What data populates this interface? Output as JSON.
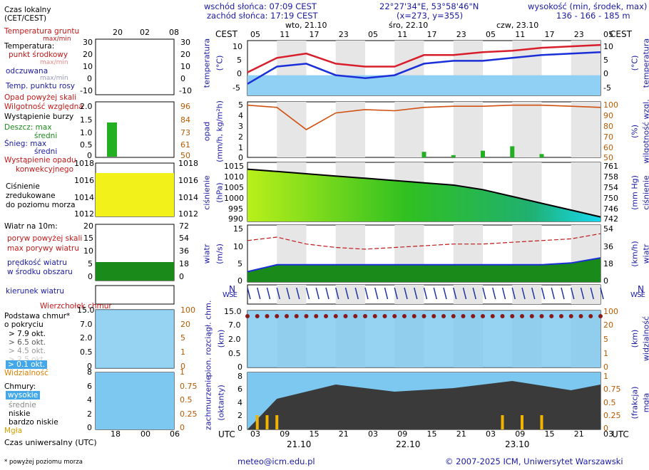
{
  "header": {
    "sunrise": "wschód słońca: 07:09 CEST",
    "sunset": "zachód słońca: 17:19 CEST",
    "coords": "22°27'34\"E, 53°58'46\"N",
    "grid": "(x=273,  y=355)",
    "altitude_label": "wysokość (min, środek, max)",
    "altitude_values": "136 - 166 - 185 m"
  },
  "left_panel": {
    "local_time": "Czas lokalny",
    "local_time_zone": "(CET/CEST)",
    "local_hours": [
      "20",
      "02",
      "08"
    ],
    "temp_ground": "Temperatura gruntu",
    "temp_ground_sub": "max/min",
    "temperature": "Temperatura:",
    "mid_point": "punkt środkowy",
    "mid_point_sub": "max/min",
    "felt": "odczuwana",
    "felt_sub": "max/min",
    "dew_point": "Temp. punktu rosy",
    "temp_ticks": [
      "30",
      "20",
      "10",
      "0",
      "-10"
    ],
    "precip_over": "Opad powyżej skali",
    "humidity": "Wilgotność względna",
    "storm": "Wystąpienie burzy",
    "rain_max": "Deszcz: max",
    "rain_mean": "średni",
    "snow_max": "Śnieg:    max",
    "snow_mean": "średni",
    "freezing": "Wystąpienie opadu",
    "freezing2": "konwekcyjnego",
    "precip_ticks": [
      "2.0",
      "1.5",
      "1.0",
      "0.5",
      "0"
    ],
    "humidity_ticks": [
      "96",
      "84",
      "73",
      "61",
      "50"
    ],
    "pressure_l1": "Ciśnienie",
    "pressure_l2": "zredukowane",
    "pressure_l3": "do poziomu morza",
    "pressure_ticks": [
      "1018",
      "1016",
      "1014",
      "1012"
    ],
    "wind_title": "Wiatr na 10m:",
    "gust_over": "poryw powyżej skali",
    "gust_max": "max porywy wiatru",
    "wind_speed": "prędkość wiatru",
    "wind_area": "w środku obszaru",
    "wind_ticks": [
      "20",
      "15",
      "10",
      "5",
      "0"
    ],
    "wind_kmh_ticks": [
      "72",
      "54",
      "36",
      "18",
      "0"
    ],
    "wind_dir": "kierunek wiatru",
    "cloud_top": "Wierzchołek chmur",
    "cloud_base": "Podstawa chmur*",
    "cloud_cover": "o pokryciu",
    "okt": [
      "> 7.9 okt.",
      "> 6.5 okt.",
      "> 4.5 okt.",
      "> 2.5 okt.",
      "> 0.1 okt."
    ],
    "cloud_ticks": [
      "15.0",
      "7.0",
      "2.0",
      "0.5",
      "0"
    ],
    "vis_ticks": [
      "100",
      "20",
      "5",
      "1",
      "0"
    ],
    "visibility": "Widzialność",
    "clouds": "Chmury:",
    "cl_high": "wysokie",
    "cl_mid": "średnie",
    "cl_low": "niskie",
    "cl_vlow": "bardzo niskie",
    "fog": "Mgła",
    "cl_ticks": [
      "8",
      "6",
      "4",
      "2",
      "0"
    ],
    "fog_ticks": [
      "1",
      "0.75",
      "0.5",
      "0.25",
      "0"
    ],
    "utc_hours": [
      "18",
      "00",
      "06"
    ],
    "utc_label": "Czas uniwersalny (UTC)",
    "footnote": "* powyżej poziomu morza"
  },
  "main": {
    "cest": "CEST",
    "utc": "UTC",
    "days_top": [
      "wto, 21.10",
      "śro, 22.10",
      "czw, 23.10"
    ],
    "hours_top": [
      "05",
      "11",
      "17",
      "23",
      "05",
      "11",
      "17",
      "23",
      "05",
      "11",
      "17",
      "23",
      "05"
    ],
    "hours_bottom": [
      "03",
      "09",
      "15",
      "21",
      "03",
      "09",
      "15",
      "21",
      "03",
      "09",
      "15",
      "21",
      "03"
    ],
    "days_bottom": [
      "21.10",
      "22.10",
      "23.10"
    ],
    "temp_ticks": [
      "10",
      "5",
      "0",
      "-5"
    ],
    "temp_label_l": "temperatura",
    "temp_label_l2": "(°C)",
    "temp_label_r": "(°C)",
    "temp_label_r2": "temperatura",
    "precip_ticks": [
      "5",
      "4",
      "3",
      "2",
      "1",
      "0"
    ],
    "hum_ticks": [
      "100",
      "90",
      "80",
      "70",
      "60",
      "50"
    ],
    "precip_label_l": "opad",
    "precip_label_l2": "(mm/h, kg/m²h)",
    "precip_label_r": "(%)",
    "precip_label_r2": "wilgotność wzgl.",
    "press_ticks": [
      "1015",
      "1010",
      "1005",
      "1000",
      "995",
      "990"
    ],
    "press_mm_ticks": [
      "761",
      "758",
      "754",
      "750",
      "746",
      "742"
    ],
    "press_label_l": "ciśnienie",
    "press_label_l2": "(hPa)",
    "press_label_r": "(mm Hg)",
    "press_label_r2": "ciśnienie",
    "wind_ticks": [
      "15",
      "10",
      "5",
      "0"
    ],
    "wind_kmh_ticks": [
      "54",
      "36",
      "18",
      "0"
    ],
    "wind_label_l": "wiatr",
    "wind_label_l2": "(m/s)",
    "wind_label_r": "(km/h)",
    "wind_label_r2": "wiatr",
    "compass": "N",
    "compass_ws": "W S E",
    "cloud_ticks": [
      "15.0",
      "7.0",
      "2.0",
      "0.5",
      "0"
    ],
    "vis_ticks": [
      "100",
      "20",
      "5",
      "1",
      "0"
    ],
    "cloud_label_l": "pion. rozciągł. chm.",
    "cloud_label_l2": "(km)",
    "cloud_label_r": "(km)",
    "cloud_label_r2": "widzialność",
    "cc_ticks": [
      "8",
      "6",
      "4",
      "2",
      "0"
    ],
    "fog_ticks": [
      "1",
      "0.75",
      "0.5",
      "0.25",
      "0"
    ],
    "cc_label_l": "zachmurzenie",
    "cc_label_l2": "(oktanty)",
    "cc_label_r": "(frakcja)",
    "cc_label_r2": "mgła"
  },
  "footer": {
    "email": "meteo@icm.edu.pl",
    "copyright": "© 2007-2025 ICM, Uniwersytet Warszawski"
  },
  "colors": {
    "temp": "#d81e2a",
    "felt": "#1a2fd8",
    "precip": "#22b022",
    "humidity": "#d05010",
    "pressure_hi": "#f2f21a",
    "pressure_lo": "#16d8f0",
    "wind": "#1a8a1a",
    "wind_gust": "#c01818",
    "panel_sky": "#7cc8f0",
    "cloud_dark": "#3a3a3a",
    "fog": "#f0b400"
  },
  "chart_data": [
    {
      "type": "line",
      "title": "temperatura",
      "ylabel": "(°C)",
      "ylim": [
        -7,
        12
      ],
      "x_hours_utc": [
        0,
        6,
        12,
        18,
        24,
        30,
        36,
        42,
        48,
        54,
        60,
        66,
        72
      ],
      "series": [
        {
          "name": "punkt środkowy",
          "values": [
            1,
            6,
            7.5,
            4,
            3,
            3,
            7,
            7,
            8,
            8.5,
            9.5,
            10,
            10.5
          ]
        },
        {
          "name": "odczuwana",
          "values": [
            -3,
            3,
            4,
            0,
            -1,
            0,
            4,
            5,
            5,
            6,
            7,
            7.5,
            8
          ]
        }
      ]
    },
    {
      "type": "bar",
      "title": "opad",
      "ylabel": "(mm/h, kg/m²h)",
      "ylim": [
        0,
        5
      ],
      "series": [
        {
          "name": "wilgotność względna",
          "values": [
            97,
            95,
            75,
            90,
            93,
            92,
            95,
            96,
            96,
            97,
            97,
            96,
            95
          ]
        },
        {
          "name": "opad",
          "values": [
            0,
            0,
            0,
            0,
            0,
            0,
            0.5,
            0.2,
            0.6,
            1.0,
            0.3,
            0,
            0
          ]
        }
      ]
    },
    {
      "type": "area",
      "title": "ciśnienie",
      "ylabel": "(hPa)",
      "ylim": [
        990,
        1016
      ],
      "series": [
        {
          "name": "ciśnienie",
          "values": [
            1013,
            1012,
            1011,
            1010,
            1009,
            1008,
            1007,
            1006,
            1004,
            1001,
            998,
            995,
            992
          ]
        }
      ]
    },
    {
      "type": "line",
      "title": "wiatr",
      "ylabel": "(m/s)",
      "ylim": [
        0,
        15
      ],
      "series": [
        {
          "name": "prędkość wiatru",
          "values": [
            3,
            5,
            5,
            5,
            5,
            5,
            5,
            5,
            5,
            5,
            5,
            5.5,
            7
          ]
        },
        {
          "name": "max porywy wiatru",
          "values": [
            12,
            13,
            11,
            10,
            9.5,
            10,
            10.5,
            11,
            11,
            11.5,
            12,
            12.5,
            14
          ]
        }
      ]
    }
  ]
}
